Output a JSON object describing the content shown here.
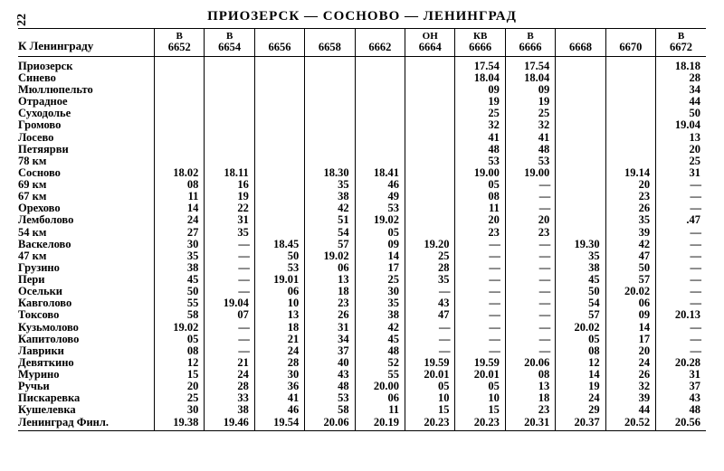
{
  "pageNumber": "22",
  "title": "ПРИОЗЕРСК — СОСНОВО — ЛЕНИНГРАД",
  "directionLabel": "К Ленинграду",
  "dashGlyph": "—",
  "trains": [
    {
      "sup": "В",
      "num": "6652"
    },
    {
      "sup": "В",
      "num": "6654"
    },
    {
      "sup": "",
      "num": "6656"
    },
    {
      "sup": "",
      "num": "6658"
    },
    {
      "sup": "",
      "num": "6662"
    },
    {
      "sup": "ОН",
      "num": "6664"
    },
    {
      "sup": "КВ",
      "num": "6666"
    },
    {
      "sup": "В",
      "num": "6666"
    },
    {
      "sup": "",
      "num": "6668"
    },
    {
      "sup": "",
      "num": "6670"
    },
    {
      "sup": "В",
      "num": "6672"
    }
  ],
  "rows": [
    {
      "s": "Приозерск",
      "c": [
        "",
        "",
        "",
        "",
        "",
        "",
        "17.54",
        "17.54",
        "",
        "",
        "18.18"
      ]
    },
    {
      "s": "Синево",
      "c": [
        "",
        "",
        "",
        "",
        "",
        "",
        "18.04",
        "18.04",
        "",
        "",
        "28"
      ]
    },
    {
      "s": "Мюллюпельто",
      "c": [
        "",
        "",
        "",
        "",
        "",
        "",
        "09",
        "09",
        "",
        "",
        "34"
      ]
    },
    {
      "s": "Отрадное",
      "c": [
        "",
        "",
        "",
        "",
        "",
        "",
        "19",
        "19",
        "",
        "",
        "44"
      ]
    },
    {
      "s": "Суходолье",
      "c": [
        "",
        "",
        "",
        "",
        "",
        "",
        "25",
        "25",
        "",
        "",
        "50"
      ]
    },
    {
      "s": "Громово",
      "c": [
        "",
        "",
        "",
        "",
        "",
        "",
        "32",
        "32",
        "",
        "",
        "19.04"
      ]
    },
    {
      "s": "Лосево",
      "c": [
        "",
        "",
        "",
        "",
        "",
        "",
        "41",
        "41",
        "",
        "",
        "13"
      ]
    },
    {
      "s": "Петяярви",
      "c": [
        "",
        "",
        "",
        "",
        "",
        "",
        "48",
        "48",
        "",
        "",
        "20"
      ]
    },
    {
      "s": "78 км",
      "c": [
        "",
        "",
        "",
        "",
        "",
        "",
        "53",
        "53",
        "",
        "",
        "25"
      ]
    },
    {
      "s": "Сосново",
      "c": [
        "18.02",
        "18.11",
        "",
        "18.30",
        "18.41",
        "",
        "19.00",
        "19.00",
        "",
        "19.14",
        "31"
      ]
    },
    {
      "s": "69 км",
      "c": [
        "08",
        "16",
        "",
        "35",
        "46",
        "",
        "05",
        "—",
        "",
        "20",
        "—"
      ]
    },
    {
      "s": "67 км",
      "c": [
        "11",
        "19",
        "",
        "38",
        "49",
        "",
        "08",
        "—",
        "",
        "23",
        "—"
      ]
    },
    {
      "s": "Орехово",
      "c": [
        "14",
        "22",
        "",
        "42",
        "53",
        "",
        "11",
        "—",
        "",
        "26",
        "—"
      ]
    },
    {
      "s": "Лемболово",
      "c": [
        "24",
        "31",
        "",
        "51",
        "19.02",
        "",
        "20",
        "20",
        "",
        "35",
        ".47"
      ]
    },
    {
      "s": "54 км",
      "c": [
        "27",
        "35",
        "",
        "54",
        "05",
        "",
        "23",
        "23",
        "",
        "39",
        "—"
      ]
    },
    {
      "s": "Васкелово",
      "c": [
        "30",
        "—",
        "18.45",
        "57",
        "09",
        "19.20",
        "—",
        "—",
        "19.30",
        "42",
        "—"
      ]
    },
    {
      "s": "47 км",
      "c": [
        "35",
        "—",
        "50",
        "19.02",
        "14",
        "25",
        "—",
        "—",
        "35",
        "47",
        "—"
      ]
    },
    {
      "s": "Грузино",
      "c": [
        "38",
        "—",
        "53",
        "06",
        "17",
        "28",
        "—",
        "—",
        "38",
        "50",
        "—"
      ]
    },
    {
      "s": "Пери",
      "c": [
        "45",
        "—",
        "19.01",
        "13",
        "25",
        "35",
        "—",
        "—",
        "45",
        "57",
        "—"
      ]
    },
    {
      "s": "Осельки",
      "c": [
        "50",
        "—",
        "06",
        "18",
        "30",
        "—",
        "—",
        "—",
        "50",
        "20.02",
        "—"
      ]
    },
    {
      "s": "Кавголово",
      "c": [
        "55",
        "19.04",
        "10",
        "23",
        "35",
        "43",
        "—",
        "—",
        "54",
        "06",
        "—"
      ]
    },
    {
      "s": "Токсово",
      "c": [
        "58",
        "07",
        "13",
        "26",
        "38",
        "47",
        "—",
        "—",
        "57",
        "09",
        "20.13"
      ]
    },
    {
      "s": "Кузьмолово",
      "c": [
        "19.02",
        "—",
        "18",
        "31",
        "42",
        "—",
        "—",
        "—",
        "20.02",
        "14",
        "—"
      ]
    },
    {
      "s": "Капитолово",
      "c": [
        "05",
        "—",
        "21",
        "34",
        "45",
        "—",
        "—",
        "—",
        "05",
        "17",
        "—"
      ]
    },
    {
      "s": "Лаврики",
      "c": [
        "08",
        "—",
        "24",
        "37",
        "48",
        "—",
        "—",
        "—",
        "08",
        "20",
        "—"
      ]
    },
    {
      "s": "Девяткино",
      "c": [
        "12",
        "21",
        "28",
        "40",
        "52",
        "19.59",
        "19.59",
        "20.06",
        "12",
        "24",
        "20.28"
      ]
    },
    {
      "s": "Мурино",
      "c": [
        "15",
        "24",
        "30",
        "43",
        "55",
        "20.01",
        "20.01",
        "08",
        "14",
        "26",
        "31"
      ]
    },
    {
      "s": "Ручьи",
      "c": [
        "20",
        "28",
        "36",
        "48",
        "20.00",
        "05",
        "05",
        "13",
        "19",
        "32",
        "37"
      ]
    },
    {
      "s": "Пискаревка",
      "c": [
        "25",
        "33",
        "41",
        "53",
        "06",
        "10",
        "10",
        "18",
        "24",
        "39",
        "43"
      ]
    },
    {
      "s": "Кушелевка",
      "c": [
        "30",
        "38",
        "46",
        "58",
        "11",
        "15",
        "15",
        "23",
        "29",
        "44",
        "48"
      ]
    },
    {
      "s": "Ленинград  Финл.",
      "c": [
        "19.38",
        "19.46",
        "19.54",
        "20.06",
        "20.19",
        "20.23",
        "20.23",
        "20.31",
        "20.37",
        "20.52",
        "20.56"
      ]
    }
  ]
}
